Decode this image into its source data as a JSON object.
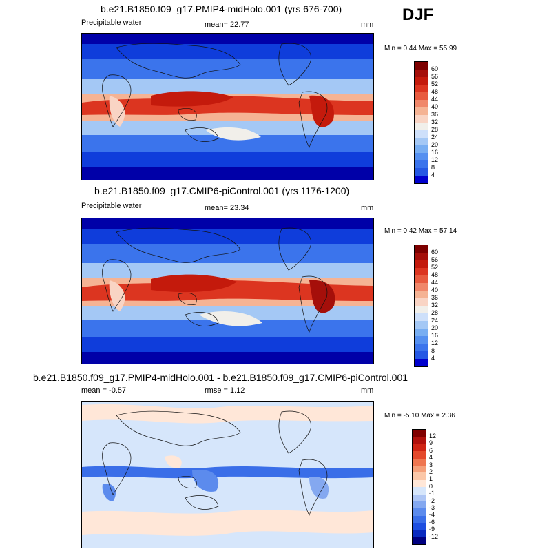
{
  "season": "DJF",
  "colors": {
    "precip_scale": [
      "#000080",
      "#0000cd",
      "#0f3ddb",
      "#2558e4",
      "#3b74ec",
      "#5590f0",
      "#78aef2",
      "#a4c8f5",
      "#cee0fa",
      "#f1efea",
      "#f9d4c4",
      "#f5b394",
      "#f0876a",
      "#e85b3f",
      "#dc3520",
      "#c41a0c",
      "#a50f0a",
      "#7d0000"
    ],
    "diff_scale": [
      "#000080",
      "#0a2bc0",
      "#1e4fe0",
      "#3a6ee8",
      "#5c8bed",
      "#84a8f0",
      "#aec6f5",
      "#d6e6fb",
      "#ffe7d8",
      "#fbc7a8",
      "#f5a07a",
      "#ef7650",
      "#e4492c",
      "#cf2414",
      "#b0100c",
      "#800000"
    ]
  },
  "panels": [
    {
      "title": "b.e21.B1850.f09_g17.PMIP4-midHolo.001 (yrs 676-700)",
      "left_label": "Precipitable water",
      "center_label": "mean=  22.77",
      "units": "mm",
      "minmax": "Min =   0.44 Max =  55.99",
      "colorbar_labels": [
        "60",
        "56",
        "52",
        "48",
        "44",
        "40",
        "36",
        "32",
        "28",
        "24",
        "20",
        "16",
        "12",
        "8",
        "4"
      ]
    },
    {
      "title": "b.e21.B1850.f09_g17.CMIP6-piControl.001 (yrs 1176-1200)",
      "left_label": "Precipitable water",
      "center_label": "mean=  23.34",
      "units": "mm",
      "minmax": "Min =   0.42 Max =  57.14",
      "colorbar_labels": [
        "60",
        "56",
        "52",
        "48",
        "44",
        "40",
        "36",
        "32",
        "28",
        "24",
        "20",
        "16",
        "12",
        "8",
        "4"
      ]
    },
    {
      "title": "b.e21.B1850.f09_g17.PMIP4-midHolo.001 - b.e21.B1850.f09_g17.CMIP6-piControl.001",
      "left_label": "mean =  -0.57",
      "center_label": "rmse =   1.12",
      "units": "mm",
      "minmax": "Min =  -5.10 Max =   2.36",
      "colorbar_labels": [
        "12",
        "9",
        "6",
        "4",
        "3",
        "2",
        "1",
        "0",
        "-1",
        "-2",
        "-3",
        "-4",
        "-6",
        "-9",
        "-12"
      ]
    }
  ]
}
